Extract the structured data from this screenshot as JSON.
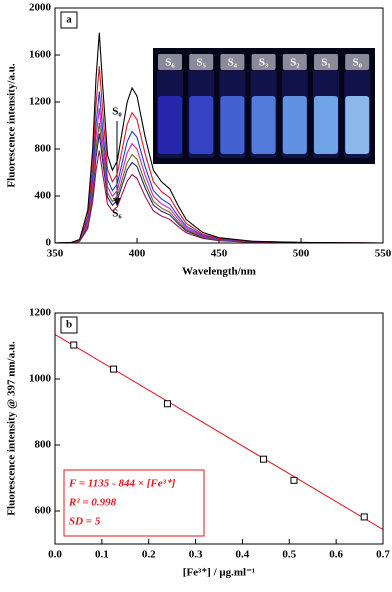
{
  "chart_data": [
    {
      "type": "line",
      "panel_label": "a",
      "x_label": "Wavelength/nm",
      "y_label": "Fluorescence intensity/a.u.",
      "annotations": [
        "S₀",
        "S₆"
      ],
      "inset_labels": [
        "S₆",
        "S₅",
        "S₄",
        "S₃",
        "S₂",
        "S₁",
        "S₀"
      ],
      "x": [
        350,
        360,
        365,
        370,
        373,
        375,
        377,
        379,
        382,
        385,
        388,
        391,
        394,
        397,
        400,
        405,
        410,
        415,
        420,
        425,
        430,
        440,
        450,
        470,
        500,
        550
      ],
      "series": [
        {
          "color": "#000000",
          "values": [
            0,
            5,
            30,
            280,
            800,
            1400,
            1790,
            1350,
            750,
            620,
            700,
            950,
            1200,
            1320,
            1250,
            900,
            620,
            520,
            460,
            320,
            200,
            90,
            45,
            15,
            5,
            0
          ]
        },
        {
          "color": "#e8141e",
          "values": [
            0,
            4,
            25,
            235,
            672,
            1176,
            1504,
            1134,
            630,
            521,
            588,
            798,
            1008,
            1109,
            1050,
            756,
            521,
            437,
            386,
            269,
            168,
            76,
            38,
            13,
            4,
            0
          ]
        },
        {
          "color": "#1a3fd0",
          "values": [
            0,
            4,
            22,
            202,
            576,
            1008,
            1289,
            972,
            540,
            446,
            504,
            684,
            864,
            950,
            900,
            648,
            446,
            374,
            331,
            230,
            144,
            65,
            32,
            11,
            4,
            0
          ]
        },
        {
          "color": "#d020c0",
          "values": [
            0,
            3,
            19,
            179,
            512,
            896,
            1146,
            864,
            480,
            397,
            448,
            608,
            768,
            845,
            800,
            576,
            397,
            333,
            294,
            205,
            128,
            58,
            29,
            10,
            3,
            0
          ]
        },
        {
          "color": "#6b6b10",
          "values": [
            0,
            3,
            17,
            160,
            456,
            798,
            1020,
            770,
            428,
            353,
            399,
            542,
            684,
            752,
            713,
            513,
            353,
            296,
            262,
            182,
            114,
            51,
            26,
            9,
            3,
            0
          ]
        },
        {
          "color": "#202080",
          "values": [
            0,
            3,
            16,
            146,
            416,
            728,
            931,
            702,
            390,
            322,
            364,
            494,
            624,
            686,
            650,
            468,
            322,
            270,
            239,
            166,
            104,
            47,
            23,
            8,
            3,
            0
          ]
        },
        {
          "color": "#a01050",
          "values": [
            0,
            2,
            13,
            123,
            352,
            616,
            788,
            594,
            330,
            273,
            308,
            418,
            528,
            581,
            550,
            396,
            273,
            229,
            202,
            141,
            88,
            40,
            20,
            7,
            2,
            0
          ]
        }
      ],
      "xlim": [
        350,
        550
      ],
      "xticks": [
        350,
        400,
        450,
        500,
        550
      ],
      "ylim": [
        0,
        2000
      ],
      "yticks": [
        0,
        400,
        800,
        1200,
        1600,
        2000
      ]
    },
    {
      "type": "scatter",
      "panel_label": "b",
      "x_label": "[Fe³⁺] / μg.ml⁻¹",
      "y_label": "Fluorescence intensity @ 397 nm/a.u.",
      "annotations": [
        "F = 1135 - 844 × [Fe³⁺]",
        "R² = 0.998",
        "SD = 5"
      ],
      "series": [
        {
          "color": "#e8141e",
          "x": [
            0,
            0.7
          ],
          "values": [
            1135,
            544
          ]
        },
        {
          "color": "#000000",
          "marker": "square",
          "x": [
            0.04,
            0.125,
            0.24,
            0.445,
            0.51,
            0.66
          ],
          "values": [
            1103,
            1030,
            925,
            757,
            693,
            582
          ]
        }
      ],
      "xlim": [
        0,
        0.7
      ],
      "xticks": [
        {
          "value": 0,
          "label": "0.0"
        },
        0.1,
        0.2,
        0.3,
        0.4,
        0.5,
        0.6,
        0.7
      ],
      "ylim": [
        500,
        1200
      ],
      "yticks": [
        600,
        800,
        1000,
        1200
      ]
    }
  ]
}
